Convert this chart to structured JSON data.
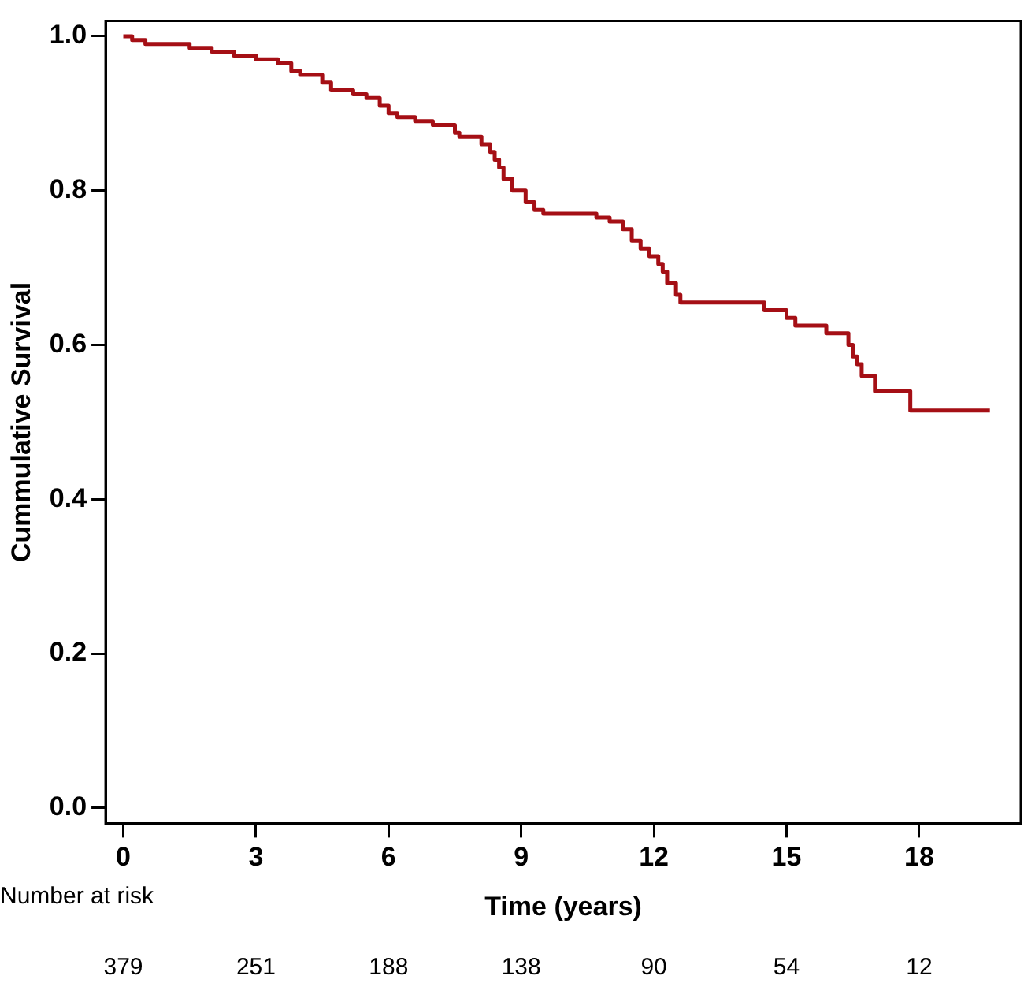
{
  "chart_data": {
    "type": "step",
    "xlabel": "Time (years)",
    "ylabel": "Cummulative Survival",
    "x": [
      0,
      0.2,
      0.5,
      1.5,
      2.0,
      2.5,
      3.0,
      3.5,
      3.8,
      4.0,
      4.5,
      4.7,
      5.2,
      5.5,
      5.8,
      6.0,
      6.2,
      6.6,
      7.0,
      7.5,
      7.6,
      8.1,
      8.3,
      8.4,
      8.5,
      8.6,
      8.8,
      9.1,
      9.3,
      9.5,
      10.7,
      11.0,
      11.3,
      11.5,
      11.7,
      11.9,
      12.1,
      12.2,
      12.3,
      12.5,
      12.6,
      14.5,
      15.0,
      15.2,
      15.9,
      16.4,
      16.5,
      16.6,
      16.7,
      17.0,
      17.8,
      19.6
    ],
    "series": [
      {
        "color": "#a50f15",
        "values": [
          1.0,
          0.995,
          0.99,
          0.985,
          0.98,
          0.975,
          0.97,
          0.965,
          0.955,
          0.95,
          0.94,
          0.93,
          0.925,
          0.92,
          0.91,
          0.9,
          0.895,
          0.89,
          0.885,
          0.875,
          0.87,
          0.86,
          0.85,
          0.84,
          0.83,
          0.815,
          0.8,
          0.785,
          0.775,
          0.77,
          0.765,
          0.76,
          0.75,
          0.735,
          0.725,
          0.715,
          0.705,
          0.695,
          0.68,
          0.665,
          0.655,
          0.645,
          0.635,
          0.625,
          0.615,
          0.6,
          0.585,
          0.575,
          0.56,
          0.54,
          0.515,
          0.515
        ]
      }
    ],
    "xlim": [
      -0.4,
      20.3
    ],
    "ylim": [
      -0.02,
      1.02
    ],
    "xticks": [
      0,
      3,
      6,
      9,
      12,
      15,
      18
    ],
    "yticks": [
      {
        "value": 0,
        "label": "0.0"
      },
      {
        "value": 0.2,
        "label": "0.2"
      },
      {
        "value": 0.4,
        "label": "0.4"
      },
      {
        "value": 0.6,
        "label": "0.6"
      },
      {
        "value": 0.8,
        "label": "0.8"
      },
      {
        "value": 1,
        "label": "1.0"
      }
    ],
    "grid": false,
    "legend": false,
    "marker": "none",
    "line_style": "solid",
    "annotations": [
      "Number at risk",
      "379",
      "251",
      "188",
      "138",
      "90",
      "54",
      "12"
    ]
  }
}
